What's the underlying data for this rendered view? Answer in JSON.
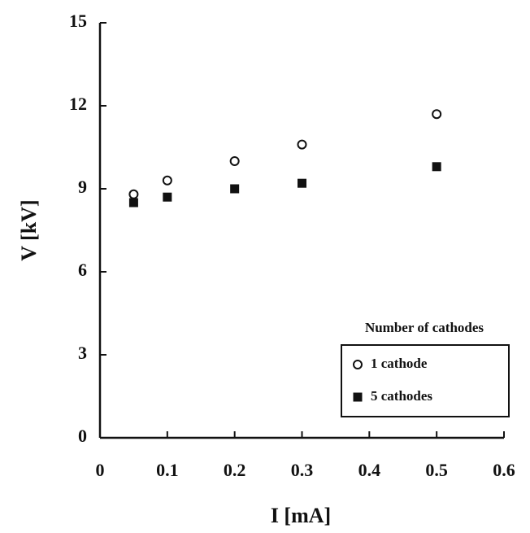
{
  "chart_data": {
    "type": "scatter",
    "xlabel": "I [mA]",
    "ylabel": "V [kV]",
    "legend_title": "Number of cathodes",
    "series": [
      {
        "name": "1 cathode",
        "color": "#111111",
        "marker": "open-circle",
        "x": [
          0.05,
          0.1,
          0.2,
          0.3,
          0.5
        ],
        "values": [
          8.8,
          9.3,
          10.0,
          10.6,
          11.7
        ]
      },
      {
        "name": "5 cathodes",
        "color": "#111111",
        "marker": "filled-square",
        "x": [
          0.05,
          0.1,
          0.2,
          0.3,
          0.5
        ],
        "values": [
          8.5,
          8.7,
          9.0,
          9.2,
          9.8
        ]
      }
    ],
    "xlim": [
      0,
      0.6
    ],
    "xticks": [
      0,
      0.1,
      0.2,
      0.3,
      0.4,
      0.5,
      0.6
    ],
    "ylim": [
      0,
      15
    ],
    "yticks": [
      0,
      3,
      6,
      9,
      12,
      15
    ],
    "legend": "lower right",
    "grid": false
  }
}
